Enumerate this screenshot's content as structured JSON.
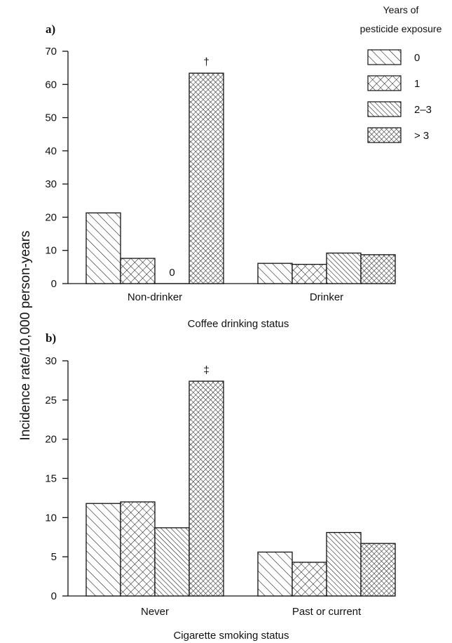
{
  "colors": {
    "ink": "#111111",
    "bar_fill": "#ffffff"
  },
  "y_axis_label": "Incidence rate/10,000 person-years",
  "legend": {
    "title_lines": [
      "Years of",
      "pesticide exposure"
    ],
    "items": [
      {
        "label": "0",
        "pattern": "hatch-diag"
      },
      {
        "label": "1",
        "pattern": "crosshatch"
      },
      {
        "label": "2–3",
        "pattern": "hatch-dense"
      },
      {
        "label": "> 3",
        "pattern": "crosshatch-dense"
      }
    ]
  },
  "chart_data": [
    {
      "type": "bar",
      "panel_label": "a)",
      "xlabel": "Coffee drinking status",
      "ylabel": "Incidence rate/10,000 person-years",
      "categories": [
        "Non-drinker",
        "Drinker"
      ],
      "ylim": [
        0,
        70
      ],
      "yticks": [
        0,
        10,
        20,
        30,
        40,
        50,
        60,
        70
      ],
      "series": [
        {
          "name": "0",
          "values": [
            21.3,
            6.1
          ]
        },
        {
          "name": "1",
          "values": [
            7.6,
            5.8
          ]
        },
        {
          "name": "2–3",
          "values": [
            0,
            9.2
          ]
        },
        {
          "name": "> 3",
          "values": [
            63.4,
            8.7
          ]
        }
      ],
      "annotations": [
        {
          "category": "Non-drinker",
          "series": "2–3",
          "text": "0"
        },
        {
          "category": "Non-drinker",
          "series": "> 3",
          "text": "†"
        }
      ],
      "grid": false,
      "legend": "top-right"
    },
    {
      "type": "bar",
      "panel_label": "b)",
      "xlabel": "Cigarette smoking status",
      "ylabel": "Incidence rate/10,000 person-years",
      "categories": [
        "Never",
        "Past or current"
      ],
      "ylim": [
        0,
        30
      ],
      "yticks": [
        0,
        5,
        10,
        15,
        20,
        25,
        30
      ],
      "series": [
        {
          "name": "0",
          "values": [
            11.8,
            5.6
          ]
        },
        {
          "name": "1",
          "values": [
            12.0,
            4.3
          ]
        },
        {
          "name": "2–3",
          "values": [
            8.7,
            8.1
          ]
        },
        {
          "name": "> 3",
          "values": [
            27.4,
            6.7
          ]
        }
      ],
      "annotations": [
        {
          "category": "Never",
          "series": "> 3",
          "text": "‡"
        }
      ],
      "grid": false,
      "legend": "none"
    }
  ]
}
